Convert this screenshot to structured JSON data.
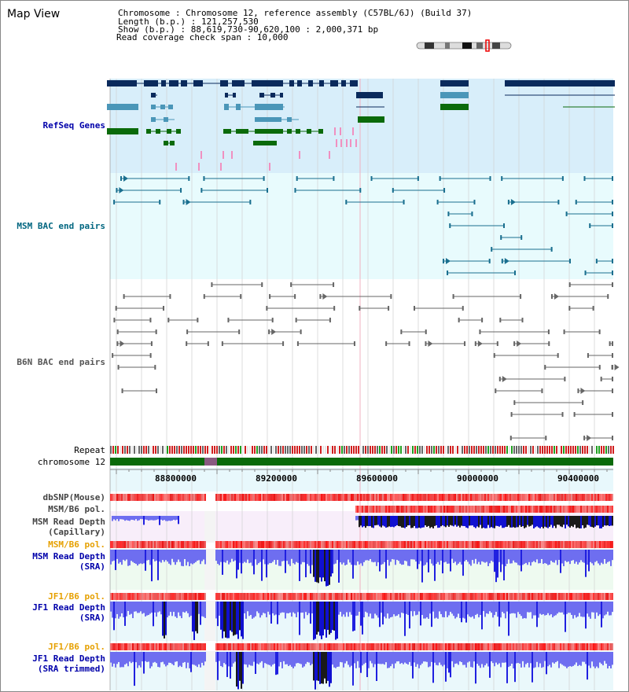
{
  "header": {
    "title": "Map View",
    "info_lines": [
      "Chromosome    : Chromosome 12, reference assembly (C57BL/6J) (Build 37)",
      "Length (b.p.) : 121,257,530",
      "  Show (b.p.) : 88,619,730-90,620,100 : 2,000,371 bp",
      "Read coverage check span : 10,000"
    ]
  },
  "tracks": {
    "refseq": "RefSeq Genes",
    "msm_bac": "MSM BAC end pairs",
    "b6n_bac": "B6N BAC end pairs",
    "repeat": "Repeat",
    "chromosome": "chromosome 12",
    "dbsnp": "dbSNP(Mouse)",
    "msm_b6_pol_1": "MSM/B6 pol.",
    "msm_depth_cap_1": "MSM Read Depth",
    "msm_depth_cap_2": "(Capillary)",
    "msm_b6_pol_2": "MSM/B6 pol.",
    "msm_depth_sra_1": "MSM Read Depth",
    "msm_depth_sra_2": "(SRA)",
    "jf1_pol_1": "JF1/B6 pol.",
    "jf1_depth_sra_1": "JF1 Read Depth",
    "jf1_depth_sra_2": "(SRA)",
    "jf1_pol_2": "JF1/B6 pol.",
    "jf1_trim_1": "JF1 Read Depth",
    "jf1_trim_2": "(SRA trimmed)"
  },
  "axis": {
    "ticks": [
      "88800000",
      "89200000",
      "89600000",
      "90000000",
      "90400000"
    ]
  },
  "colors": {
    "refseq_label": "#0000aa",
    "msm_label": "#006680",
    "b6n_label": "#555555",
    "orange_label": "#e6a000",
    "navy": "#0a2a5c",
    "teal": "#4a96b8",
    "green": "#0a6a0a",
    "depth_blue": "#2020e0"
  }
}
